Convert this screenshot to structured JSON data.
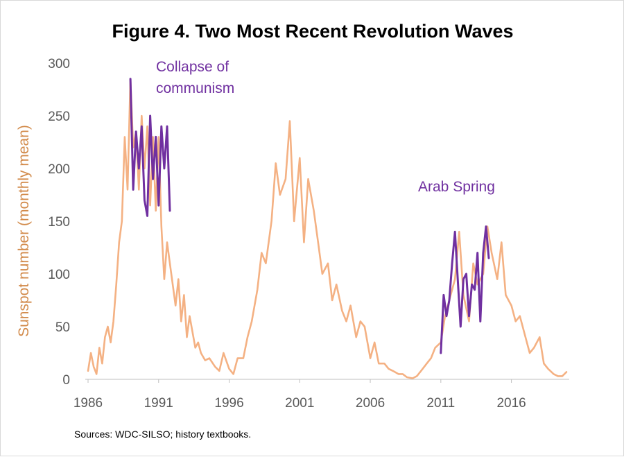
{
  "colors": {
    "main_series": "#f4b183",
    "highlight_series": "#7030a0",
    "axis_label": "#d28a4a",
    "tick_text": "#595959",
    "axis_line": "#bfbfbf"
  },
  "chart_data": {
    "type": "line",
    "title": "Figure 4. Two Most Recent Revolution Waves",
    "xlabel": "",
    "ylabel": "Sunspot number (monthly mean)",
    "xlim": [
      1986,
      2020
    ],
    "ylim": [
      0,
      300
    ],
    "x_ticks": [
      "1986",
      "1991",
      "1996",
      "2001",
      "2006",
      "2011",
      "2016"
    ],
    "y_ticks": [
      "0",
      "50",
      "100",
      "150",
      "200",
      "250",
      "300"
    ],
    "grid": false,
    "annotations": [
      {
        "id": "collapse",
        "lines": [
          "Collapse of",
          "communism"
        ]
      },
      {
        "id": "arab",
        "lines": [
          "Arab Spring"
        ]
      }
    ],
    "source": "Sources:  WDC-SILSO; history textbooks.",
    "series": [
      {
        "name": "Sunspot number",
        "color": "#f4b183",
        "x": [
          1986.0,
          1986.2,
          1986.4,
          1986.6,
          1986.8,
          1987.0,
          1987.2,
          1987.4,
          1987.6,
          1987.8,
          1988.0,
          1988.2,
          1988.4,
          1988.6,
          1988.8,
          1989.0,
          1989.2,
          1989.4,
          1989.6,
          1989.8,
          1990.0,
          1990.2,
          1990.4,
          1990.6,
          1990.8,
          1991.0,
          1991.2,
          1991.4,
          1991.6,
          1991.8,
          1992.0,
          1992.2,
          1992.4,
          1992.6,
          1992.8,
          1993.0,
          1993.2,
          1993.4,
          1993.6,
          1993.8,
          1994.0,
          1994.3,
          1994.6,
          1995.0,
          1995.3,
          1995.6,
          1996.0,
          1996.3,
          1996.6,
          1997.0,
          1997.3,
          1997.6,
          1998.0,
          1998.3,
          1998.6,
          1999.0,
          1999.3,
          1999.6,
          2000.0,
          2000.3,
          2000.6,
          2001.0,
          2001.3,
          2001.6,
          2002.0,
          2002.3,
          2002.6,
          2003.0,
          2003.3,
          2003.6,
          2004.0,
          2004.3,
          2004.6,
          2005.0,
          2005.3,
          2005.6,
          2006.0,
          2006.3,
          2006.6,
          2007.0,
          2007.3,
          2007.6,
          2008.0,
          2008.3,
          2008.6,
          2009.0,
          2009.3,
          2009.6,
          2010.0,
          2010.3,
          2010.6,
          2011.0,
          2011.3,
          2011.6,
          2012.0,
          2012.3,
          2012.6,
          2013.0,
          2013.3,
          2013.6,
          2014.0,
          2014.3,
          2014.6,
          2015.0,
          2015.3,
          2015.6,
          2016.0,
          2016.3,
          2016.6,
          2017.0,
          2017.3,
          2017.6,
          2018.0,
          2018.3,
          2018.6,
          2019.0,
          2019.3,
          2019.6,
          2019.9
        ],
        "values": [
          8,
          25,
          12,
          5,
          30,
          15,
          40,
          50,
          35,
          55,
          90,
          130,
          150,
          230,
          180,
          285,
          220,
          235,
          180,
          250,
          200,
          240,
          165,
          230,
          160,
          230,
          145,
          95,
          130,
          110,
          90,
          70,
          95,
          55,
          80,
          40,
          60,
          45,
          30,
          35,
          25,
          18,
          20,
          12,
          8,
          25,
          10,
          5,
          20,
          20,
          40,
          55,
          85,
          120,
          110,
          150,
          205,
          175,
          190,
          245,
          150,
          210,
          130,
          190,
          160,
          130,
          100,
          110,
          75,
          90,
          65,
          55,
          70,
          40,
          55,
          50,
          20,
          35,
          15,
          15,
          10,
          8,
          5,
          5,
          2,
          1,
          3,
          8,
          15,
          20,
          30,
          35,
          60,
          75,
          95,
          140,
          80,
          55,
          110,
          90,
          100,
          145,
          120,
          95,
          130,
          80,
          70,
          55,
          60,
          40,
          25,
          30,
          40,
          15,
          10,
          5,
          3,
          3,
          7
        ]
      },
      {
        "name": "Collapse of communism",
        "color": "#7030a0",
        "x": [
          1989.0,
          1989.2,
          1989.4,
          1989.6,
          1989.8,
          1990.0,
          1990.2,
          1990.4,
          1990.6,
          1990.8,
          1991.0,
          1991.2,
          1991.4,
          1991.6,
          1991.8
        ],
        "values": [
          285,
          180,
          235,
          200,
          240,
          170,
          155,
          250,
          190,
          230,
          165,
          240,
          200,
          240,
          160
        ]
      },
      {
        "name": "Arab Spring",
        "color": "#7030a0",
        "x": [
          2011.0,
          2011.2,
          2011.4,
          2011.6,
          2011.8,
          2012.0,
          2012.2,
          2012.4,
          2012.6,
          2012.8,
          2013.0,
          2013.2,
          2013.4,
          2013.6,
          2013.8,
          2014.0,
          2014.2,
          2014.4
        ],
        "values": [
          25,
          80,
          60,
          75,
          110,
          140,
          95,
          50,
          95,
          100,
          60,
          90,
          85,
          120,
          55,
          120,
          145,
          115
        ]
      }
    ]
  }
}
